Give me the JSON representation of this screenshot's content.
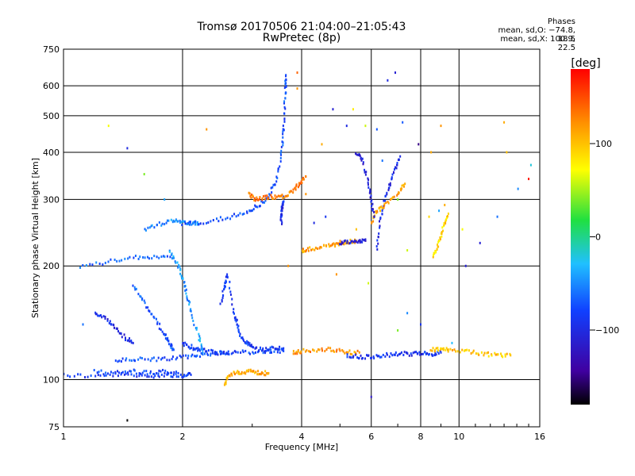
{
  "title": "Tromsø 20170506 21:04:00–21:05:43",
  "subtitle": "RwPretec (8p)",
  "stats": {
    "heading": "Phases",
    "o_line": "mean, sd,O: −74.8, 18.5",
    "x_line": "mean, sd,X: 100.9, 22.5"
  },
  "chart_data": {
    "type": "scatter",
    "title": "Tromsø 20170506 21:04:00–21:05:43",
    "subtitle": "RwPretec (8p)",
    "xlabel": "Frequency [MHz]",
    "ylabel": "Stationary phase Virtual Height [km]",
    "xscale": "log",
    "yscale": "log",
    "xlim": [
      1,
      16
    ],
    "ylim": [
      75,
      750
    ],
    "xticks": [
      1,
      2,
      4,
      6,
      8,
      10,
      16
    ],
    "xtick_labels": [
      "1",
      "2",
      "4",
      "6",
      "8",
      "10",
      "16"
    ],
    "yticks": [
      75,
      100,
      200,
      300,
      400,
      500,
      600,
      750
    ],
    "ytick_labels": [
      "75",
      "100",
      "200",
      "300",
      "400",
      "500",
      "600",
      "750"
    ],
    "grid": true,
    "colorbar": {
      "label": "[deg]",
      "range": [
        -180,
        180
      ],
      "ticks": [
        100,
        0,
        -100
      ],
      "tick_labels": [
        "100",
        "0",
        "−100"
      ]
    },
    "colors": {
      "o_mode": "#1060ff",
      "x_mode": "#ffa020",
      "grid": "#000000"
    },
    "traces": [
      {
        "name": "",
        "phase": -85,
        "points": [
          [
            1.0,
            103
          ],
          [
            1.2,
            102
          ],
          [
            1.4,
            103
          ],
          [
            1.6,
            102
          ],
          [
            1.8,
            103
          ],
          [
            2.0,
            102
          ],
          [
            2.1,
            103
          ]
        ]
      },
      {
        "name": "",
        "phase": -80,
        "points": [
          [
            1.2,
            105
          ],
          [
            1.35,
            104
          ],
          [
            1.5,
            105
          ],
          [
            1.65,
            104
          ],
          [
            1.8,
            105
          ],
          [
            1.95,
            104
          ]
        ]
      },
      {
        "name": "",
        "phase": -75,
        "points": [
          [
            1.35,
            112
          ],
          [
            1.5,
            113
          ],
          [
            1.7,
            113
          ],
          [
            1.9,
            114
          ],
          [
            2.1,
            115
          ],
          [
            2.3,
            117
          ],
          [
            2.5,
            118
          ],
          [
            2.7,
            118
          ],
          [
            3.0,
            118
          ],
          [
            3.3,
            119
          ],
          [
            3.6,
            119
          ]
        ]
      },
      {
        "name": "",
        "phase": -90,
        "points": [
          [
            2.0,
            125
          ],
          [
            2.1,
            122
          ],
          [
            2.2,
            120
          ],
          [
            2.4,
            118
          ],
          [
            2.6,
            117
          ]
        ]
      },
      {
        "name": "",
        "phase": -70,
        "points": [
          [
            1.5,
            178
          ],
          [
            1.6,
            160
          ],
          [
            1.7,
            145
          ],
          [
            1.8,
            132
          ],
          [
            1.85,
            125
          ],
          [
            1.9,
            120
          ]
        ]
      },
      {
        "name": "",
        "phase": -100,
        "points": [
          [
            1.2,
            150
          ],
          [
            1.28,
            145
          ],
          [
            1.35,
            138
          ],
          [
            1.42,
            130
          ],
          [
            1.5,
            125
          ]
        ]
      },
      {
        "name": "",
        "phase": -65,
        "points": [
          [
            1.1,
            200
          ],
          [
            1.3,
            205
          ],
          [
            1.5,
            210
          ],
          [
            1.7,
            212
          ],
          [
            1.9,
            210
          ]
        ]
      },
      {
        "name": "",
        "phase": -50,
        "points": [
          [
            1.6,
            250
          ],
          [
            1.75,
            258
          ],
          [
            1.9,
            265
          ],
          [
            2.0,
            262
          ],
          [
            2.1,
            260
          ],
          [
            2.2,
            258
          ]
        ]
      },
      {
        "name": "",
        "phase": -45,
        "points": [
          [
            1.85,
            220
          ],
          [
            1.95,
            200
          ],
          [
            2.0,
            185
          ],
          [
            2.05,
            170
          ],
          [
            2.1,
            150
          ],
          [
            2.2,
            130
          ],
          [
            2.25,
            118
          ]
        ]
      },
      {
        "name": "",
        "phase": -75,
        "points": [
          [
            2.0,
            258
          ],
          [
            2.3,
            262
          ],
          [
            2.6,
            268
          ],
          [
            2.9,
            278
          ],
          [
            3.1,
            288
          ],
          [
            3.3,
            305
          ],
          [
            3.45,
            335
          ],
          [
            3.55,
            390
          ],
          [
            3.6,
            450
          ],
          [
            3.62,
            520
          ],
          [
            3.64,
            590
          ],
          [
            3.65,
            640
          ]
        ]
      },
      {
        "name": "",
        "phase": -95,
        "points": [
          [
            3.55,
            260
          ],
          [
            3.56,
            275
          ],
          [
            3.58,
            290
          ],
          [
            3.6,
            305
          ]
        ]
      },
      {
        "name": "",
        "phase": -85,
        "points": [
          [
            2.5,
            160
          ],
          [
            2.55,
            175
          ],
          [
            2.6,
            190
          ],
          [
            2.7,
            150
          ],
          [
            2.75,
            140
          ],
          [
            2.8,
            130
          ],
          [
            2.9,
            125
          ],
          [
            3.0,
            122
          ],
          [
            3.2,
            120
          ],
          [
            3.4,
            121
          ],
          [
            3.6,
            121
          ]
        ]
      },
      {
        "name": "",
        "phase": 110,
        "points": [
          [
            2.55,
            97
          ],
          [
            2.6,
            101
          ],
          [
            2.7,
            104
          ],
          [
            2.85,
            105
          ],
          [
            3.0,
            105
          ],
          [
            3.15,
            104
          ],
          [
            3.3,
            104
          ]
        ]
      },
      {
        "name": "",
        "phase": 130,
        "points": [
          [
            2.95,
            310
          ],
          [
            3.05,
            300
          ],
          [
            3.2,
            303
          ],
          [
            3.4,
            305
          ],
          [
            3.6,
            305
          ],
          [
            3.8,
            315
          ],
          [
            3.95,
            330
          ],
          [
            4.1,
            345
          ]
        ]
      },
      {
        "name": "",
        "phase": 115,
        "points": [
          [
            4.0,
            220
          ],
          [
            4.2,
            222
          ],
          [
            4.5,
            225
          ],
          [
            4.8,
            227
          ],
          [
            5.0,
            230
          ],
          [
            5.2,
            232
          ],
          [
            5.5,
            233
          ]
        ]
      },
      {
        "name": "",
        "phase": -110,
        "points": [
          [
            5.0,
            230
          ],
          [
            5.3,
            232
          ],
          [
            5.6,
            233
          ],
          [
            5.8,
            235
          ]
        ]
      },
      {
        "name": "",
        "phase": 120,
        "points": [
          [
            3.8,
            118
          ],
          [
            4.0,
            119
          ],
          [
            4.4,
            120
          ],
          [
            4.8,
            120
          ],
          [
            5.2,
            118
          ],
          [
            5.6,
            118
          ]
        ]
      },
      {
        "name": "",
        "phase": -90,
        "points": [
          [
            5.2,
            116
          ],
          [
            5.6,
            115
          ],
          [
            6.0,
            115
          ],
          [
            6.5,
            116
          ],
          [
            7.0,
            117
          ],
          [
            7.5,
            117
          ],
          [
            8.0,
            117
          ],
          [
            8.5,
            117
          ],
          [
            9.0,
            118
          ]
        ]
      },
      {
        "name": "",
        "phase": 100,
        "points": [
          [
            8.5,
            120
          ],
          [
            9.0,
            120
          ],
          [
            9.5,
            120
          ],
          [
            10.5,
            119
          ],
          [
            11.5,
            117
          ],
          [
            12.5,
            116
          ],
          [
            13.5,
            116
          ]
        ]
      },
      {
        "name": "",
        "phase": -100,
        "points": [
          [
            6.2,
            220
          ],
          [
            6.3,
            260
          ],
          [
            6.5,
            300
          ],
          [
            6.7,
            330
          ],
          [
            6.9,
            360
          ],
          [
            7.1,
            390
          ]
        ]
      },
      {
        "name": "",
        "phase": 110,
        "points": [
          [
            6.0,
            260
          ],
          [
            6.2,
            280
          ],
          [
            6.5,
            290
          ],
          [
            7.0,
            310
          ],
          [
            7.3,
            330
          ]
        ]
      },
      {
        "name": "",
        "phase": -110,
        "points": [
          [
            5.5,
            400
          ],
          [
            5.7,
            380
          ],
          [
            5.9,
            330
          ],
          [
            6.0,
            300
          ],
          [
            6.1,
            270
          ]
        ]
      },
      {
        "name": "",
        "phase": 90,
        "points": [
          [
            8.6,
            210
          ],
          [
            8.8,
            225
          ],
          [
            9.0,
            240
          ],
          [
            9.2,
            260
          ],
          [
            9.4,
            275
          ]
        ]
      }
    ],
    "scatter_noise": [
      [
        1.3,
        470,
        70
      ],
      [
        1.45,
        410,
        -100
      ],
      [
        1.6,
        350,
        40
      ],
      [
        1.8,
        300,
        -40
      ],
      [
        2.3,
        460,
        120
      ],
      [
        3.9,
        650,
        140
      ],
      [
        3.9,
        590,
        120
      ],
      [
        4.5,
        420,
        110
      ],
      [
        4.8,
        520,
        -110
      ],
      [
        5.2,
        470,
        -100
      ],
      [
        5.4,
        520,
        80
      ],
      [
        5.8,
        470,
        60
      ],
      [
        6.2,
        460,
        -70
      ],
      [
        6.6,
        620,
        -100
      ],
      [
        6.9,
        650,
        -110
      ],
      [
        7.2,
        480,
        -70
      ],
      [
        7.9,
        420,
        -150
      ],
      [
        8.5,
        400,
        110
      ],
      [
        9.0,
        470,
        120
      ],
      [
        10.2,
        250,
        70
      ],
      [
        11.3,
        230,
        -110
      ],
      [
        12.5,
        270,
        -60
      ],
      [
        13.0,
        480,
        110
      ],
      [
        13.2,
        400,
        100
      ],
      [
        14.1,
        320,
        -50
      ],
      [
        15.0,
        340,
        170
      ],
      [
        15.2,
        370,
        -20
      ],
      [
        4.1,
        310,
        120
      ],
      [
        4.3,
        260,
        -100
      ],
      [
        4.6,
        270,
        -90
      ],
      [
        6.4,
        380,
        -60
      ],
      [
        7.0,
        300,
        40
      ],
      [
        7.4,
        220,
        60
      ],
      [
        8.4,
        270,
        90
      ],
      [
        8.9,
        280,
        -40
      ],
      [
        9.2,
        290,
        110
      ],
      [
        10.4,
        200,
        -110
      ],
      [
        6.0,
        90,
        -120
      ],
      [
        5.5,
        250,
        100
      ],
      [
        3.7,
        200,
        120
      ],
      [
        4.9,
        190,
        120
      ],
      [
        5.9,
        180,
        60
      ],
      [
        7.4,
        150,
        -50
      ],
      [
        8.0,
        140,
        -90
      ],
      [
        7.0,
        135,
        40
      ],
      [
        9.6,
        125,
        -30
      ],
      [
        1.45,
        78,
        -180
      ],
      [
        1.12,
        140,
        -60
      ]
    ]
  }
}
